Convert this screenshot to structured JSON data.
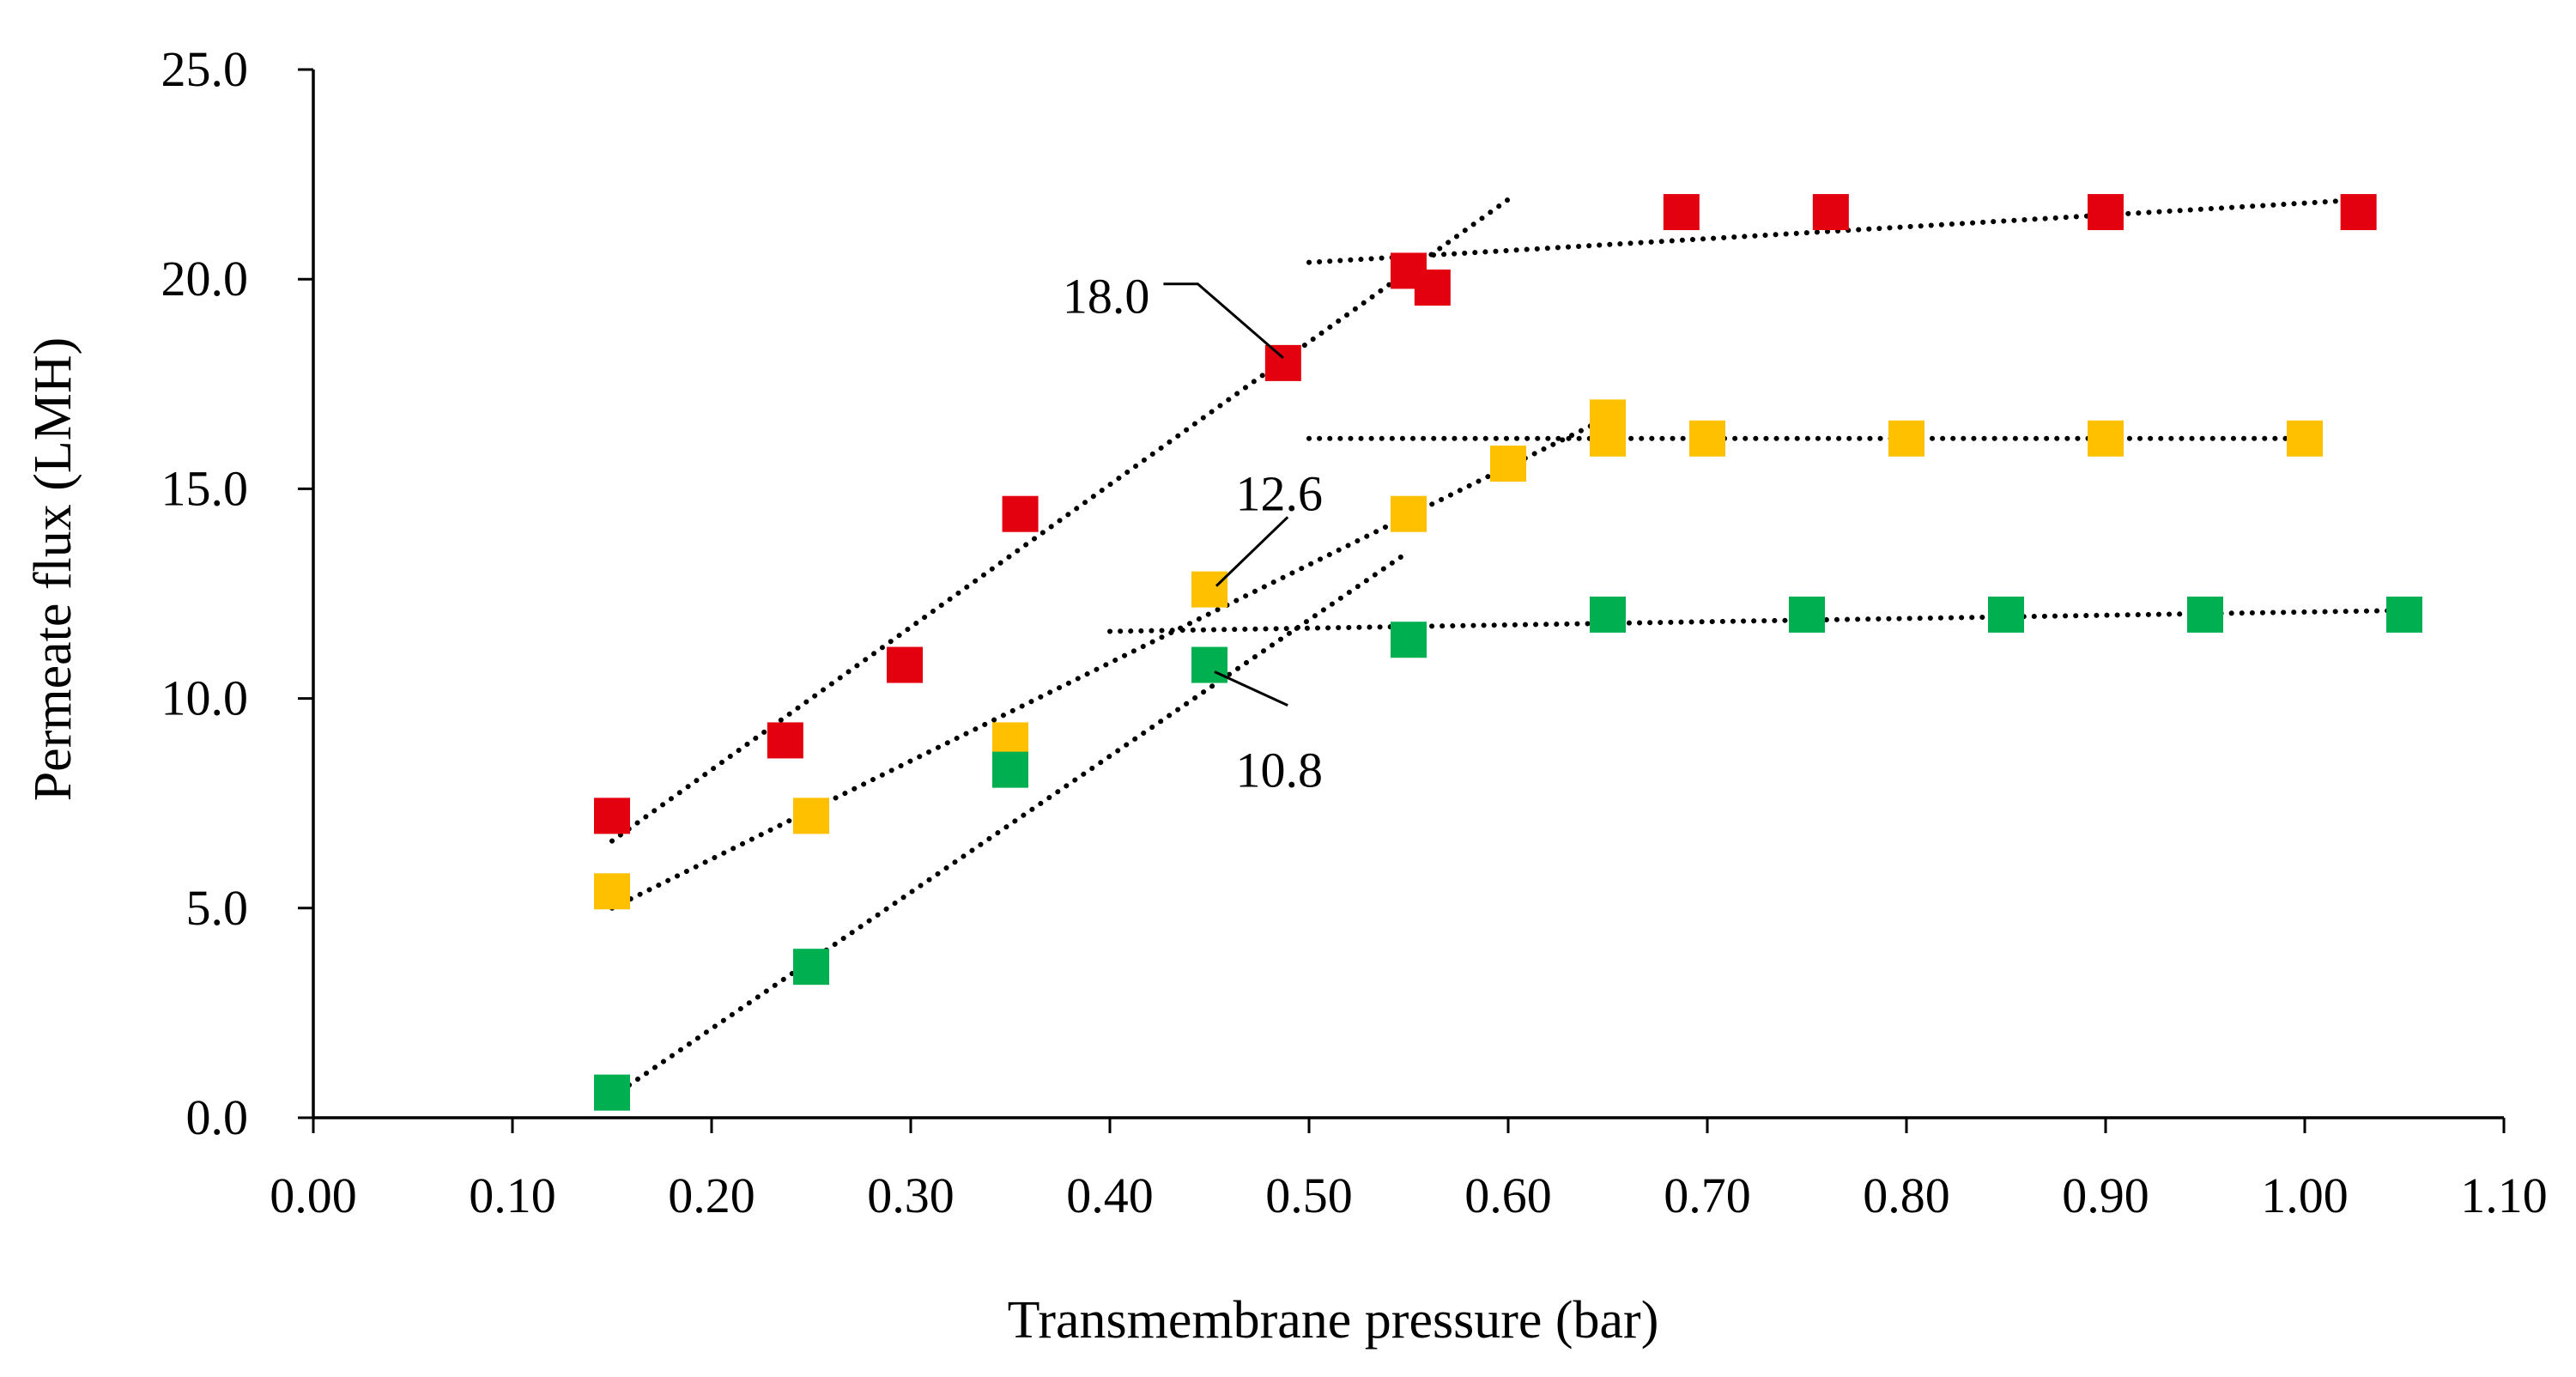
{
  "chart_data": {
    "type": "scatter",
    "xlabel": "Transmembrane pressure (bar)",
    "ylabel": "Permeate flux (LMH)",
    "xlim": [
      0,
      1.1
    ],
    "ylim": [
      0,
      25
    ],
    "x_ticks": [
      "0.00",
      "0.10",
      "0.20",
      "0.30",
      "0.40",
      "0.50",
      "0.60",
      "0.70",
      "0.80",
      "0.90",
      "1.00",
      "1.10"
    ],
    "y_ticks": [
      "0.0",
      "5.0",
      "10.0",
      "15.0",
      "20.0",
      "25.0"
    ],
    "grid": false,
    "legend": "none",
    "series": [
      {
        "name": "red",
        "color": "#e3000f",
        "points": [
          {
            "x": 0.15,
            "y": 7.2
          },
          {
            "x": 0.237,
            "y": 9.0
          },
          {
            "x": 0.297,
            "y": 10.8
          },
          {
            "x": 0.355,
            "y": 14.4
          },
          {
            "x": 0.487,
            "y": 18.0
          },
          {
            "x": 0.55,
            "y": 20.2
          },
          {
            "x": 0.562,
            "y": 19.8
          },
          {
            "x": 0.687,
            "y": 21.6
          },
          {
            "x": 0.762,
            "y": 21.6
          },
          {
            "x": 0.9,
            "y": 21.6
          },
          {
            "x": 1.027,
            "y": 21.6
          }
        ],
        "trendlines": [
          {
            "x1": 0.15,
            "y1": 6.6,
            "x2": 0.6,
            "y2": 21.9
          },
          {
            "x1": 0.5,
            "y1": 20.4,
            "x2": 1.03,
            "y2": 21.9
          }
        ]
      },
      {
        "name": "yellow",
        "color": "#ffc000",
        "points": [
          {
            "x": 0.15,
            "y": 5.4
          },
          {
            "x": 0.25,
            "y": 7.2
          },
          {
            "x": 0.35,
            "y": 9.0
          },
          {
            "x": 0.45,
            "y": 12.6
          },
          {
            "x": 0.55,
            "y": 14.4
          },
          {
            "x": 0.6,
            "y": 15.6
          },
          {
            "x": 0.65,
            "y": 16.2
          },
          {
            "x": 0.65,
            "y": 16.7
          },
          {
            "x": 0.7,
            "y": 16.2
          },
          {
            "x": 0.8,
            "y": 16.2
          },
          {
            "x": 0.9,
            "y": 16.2
          },
          {
            "x": 1.0,
            "y": 16.2
          }
        ],
        "trendlines": [
          {
            "x1": 0.15,
            "y1": 5.0,
            "x2": 0.65,
            "y2": 16.7
          },
          {
            "x1": 0.5,
            "y1": 16.2,
            "x2": 1.0,
            "y2": 16.2
          }
        ]
      },
      {
        "name": "green",
        "color": "#00b050",
        "points": [
          {
            "x": 0.15,
            "y": 0.6
          },
          {
            "x": 0.25,
            "y": 3.6
          },
          {
            "x": 0.35,
            "y": 8.3
          },
          {
            "x": 0.45,
            "y": 10.8
          },
          {
            "x": 0.55,
            "y": 11.4
          },
          {
            "x": 0.65,
            "y": 12.0
          },
          {
            "x": 0.75,
            "y": 12.0
          },
          {
            "x": 0.85,
            "y": 12.0
          },
          {
            "x": 0.95,
            "y": 12.0
          },
          {
            "x": 1.05,
            "y": 12.0
          }
        ],
        "trendlines": [
          {
            "x1": 0.15,
            "y1": 0.5,
            "x2": 0.55,
            "y2": 13.5
          },
          {
            "x1": 0.4,
            "y1": 11.6,
            "x2": 1.05,
            "y2": 12.1
          }
        ]
      }
    ],
    "annotations": [
      {
        "text": "18.0",
        "x": 0.487,
        "y": 18.0,
        "label_x": 0.42,
        "label_y": 19.6,
        "anchor": "end"
      },
      {
        "text": "12.6",
        "x": 0.45,
        "y": 12.6,
        "label_x": 0.485,
        "label_y": 14.9,
        "anchor": "middle"
      },
      {
        "text": "10.8",
        "x": 0.45,
        "y": 10.8,
        "label_x": 0.485,
        "label_y": 8.3,
        "anchor": "middle"
      }
    ]
  }
}
